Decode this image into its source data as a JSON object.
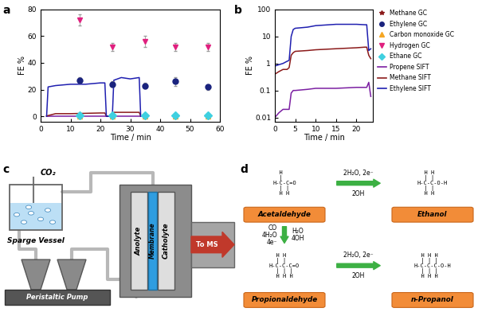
{
  "chart_data": [
    {
      "panel_label": "a",
      "type": "line",
      "x_label": "Time / min",
      "y_label": "FE %",
      "xlim": [
        0,
        60
      ],
      "xticks": [
        0,
        10,
        20,
        30,
        40,
        50,
        60
      ],
      "ylim": [
        -4,
        80
      ],
      "yticks": [
        0,
        20,
        40,
        60,
        80
      ],
      "series": [
        {
          "name": "Methane GC",
          "type": "scatter",
          "marker": "star",
          "color": "#8b1a1a",
          "x": [
            13,
            24,
            35,
            45,
            56
          ],
          "values": [
            0.3,
            0.4,
            0.4,
            0.4,
            0.3
          ],
          "errors": [
            0.2,
            0.2,
            0.2,
            0.2,
            0.2
          ]
        },
        {
          "name": "Ethylene GC",
          "type": "scatter",
          "marker": "circle",
          "color": "#1a237e",
          "x": [
            13,
            24,
            35,
            45,
            56
          ],
          "values": [
            27,
            24,
            23,
            26,
            22
          ],
          "errors": [
            2,
            2,
            2,
            3,
            2
          ]
        },
        {
          "name": "Carbon monoxide GC",
          "type": "scatter",
          "marker": "triangle_up",
          "color": "#f5a623",
          "x": [
            13,
            24,
            35,
            45,
            56
          ],
          "values": [
            0.2,
            0.2,
            0.2,
            0.2,
            0.2
          ],
          "errors": [
            0.1,
            0.1,
            0.1,
            0.1,
            0.1
          ]
        },
        {
          "name": "Hydrogen GC",
          "type": "scatter",
          "marker": "triangle_down",
          "color": "#e0207f",
          "x": [
            13,
            24,
            35,
            45,
            56
          ],
          "values": [
            72,
            52,
            56,
            52,
            52
          ],
          "errors": [
            4,
            3,
            4,
            3,
            3
          ]
        },
        {
          "name": "Ethane GC",
          "type": "scatter",
          "marker": "diamond",
          "color": "#3fd0e0",
          "x": [
            13,
            24,
            35,
            45,
            56
          ],
          "values": [
            0.5,
            0.5,
            0.5,
            0.5,
            0.5
          ],
          "errors": [
            0.2,
            0.2,
            0.2,
            0.2,
            0.2
          ]
        },
        {
          "name": "Propene SIFT",
          "type": "line",
          "line_style": "solid",
          "color": "#7b1fa2",
          "x": [
            2,
            5,
            10,
            20,
            21.5,
            22,
            24,
            24.5,
            30,
            33,
            33.5
          ],
          "values": [
            0.02,
            0.1,
            0.1,
            0.12,
            0.12,
            0.02,
            0.02,
            0.1,
            0.1,
            0.1,
            0.02
          ]
        },
        {
          "name": "Methane SIFT",
          "type": "line",
          "line_style": "solid",
          "color": "#8b1a1a",
          "x": [
            2,
            5,
            10,
            20,
            21.5,
            22,
            24,
            24.5,
            30,
            33,
            33.5
          ],
          "values": [
            0.3,
            2,
            2,
            2.5,
            2.5,
            0.2,
            0.2,
            3,
            3,
            3,
            0.2
          ]
        },
        {
          "name": "Ethylene SIFT",
          "type": "line",
          "line_style": "solid",
          "color": "#1f1fb0",
          "x": [
            2,
            2.5,
            5,
            10,
            15,
            20,
            21.5,
            22,
            24,
            24.5,
            27,
            30,
            33,
            33.5
          ],
          "values": [
            0,
            22,
            23,
            24,
            24,
            25,
            25,
            0,
            0,
            27,
            29,
            28,
            29,
            0
          ]
        }
      ]
    },
    {
      "panel_label": "b",
      "type": "line",
      "x_label": "Time / min",
      "y_label": "FE %",
      "log": "y",
      "legend": "upper left",
      "xlim": [
        0,
        24
      ],
      "xticks": [
        0,
        5,
        10,
        15,
        20
      ],
      "ylim": [
        0.007,
        100
      ],
      "yticks": [
        0.01,
        0.1,
        1,
        10,
        100
      ],
      "x": [
        0,
        1,
        2,
        3,
        3.5,
        4,
        4.5,
        5,
        8,
        10,
        15,
        20,
        22,
        22.5,
        23,
        23.5
      ],
      "series": [
        {
          "name": "Propene SIFT",
          "line_style": "solid",
          "color": "#7b1fa2",
          "values": [
            0.01,
            0.015,
            0.02,
            0.02,
            0.02,
            0.08,
            0.1,
            0.1,
            0.11,
            0.12,
            0.12,
            0.13,
            0.13,
            0.13,
            0.2,
            0.06
          ]
        },
        {
          "name": "Methane SIFT",
          "line_style": "solid",
          "color": "#8b1a1a",
          "values": [
            0.4,
            0.5,
            0.6,
            0.6,
            0.7,
            2,
            2.5,
            2.8,
            3,
            3.2,
            3.5,
            3.8,
            4,
            4,
            2,
            1.5
          ]
        },
        {
          "name": "Ethylene SIFT",
          "line_style": "solid",
          "color": "#1f1fb0",
          "values": [
            0.8,
            0.9,
            1,
            1.2,
            1.3,
            10,
            18,
            20,
            22,
            25,
            28,
            28,
            27,
            27,
            3,
            3.5
          ]
        }
      ]
    }
  ],
  "setup": {
    "panel_label": "c",
    "gas": "CO₂",
    "sparge_vessel": "Sparge Vessel",
    "pump": "Peristaltic Pump",
    "anolyte": "Anolyte",
    "membrane": "Membrane",
    "catholyte": "Catholyte",
    "outlet": "To MS"
  },
  "reactions": {
    "panel_label": "d",
    "species": [
      {
        "name": "Acetaldehyde",
        "structure": [
          "  H    ",
          "  |    ",
          "H-C-C=O",
          "  | |  ",
          "  H H  "
        ]
      },
      {
        "name": "Ethanol",
        "structure": [
          "  H H    ",
          "  | |    ",
          "H-C-C-O-H",
          "  | |    ",
          "  H H    "
        ]
      },
      {
        "name": "Propionaldehyde",
        "structure": [
          "  H H    ",
          "  | |    ",
          "H-C-C-C=O",
          "  | | |  ",
          "  H H H  "
        ]
      },
      {
        "name": "n-Propanol",
        "structure": [
          "  H H H    ",
          "  | | |    ",
          "H-C-C-C-O-H",
          "  | | |    ",
          "  H H H    "
        ]
      }
    ],
    "arrows": [
      {
        "above": "2H₂O, 2e⁻",
        "below": "2OH"
      },
      {
        "left": [
          "CO",
          "4H₂O",
          "4e⁻"
        ],
        "right": [
          "H₂O",
          "4OH"
        ]
      },
      {
        "above": "2H₂O, 2e⁻",
        "below": "2OH"
      }
    ]
  }
}
